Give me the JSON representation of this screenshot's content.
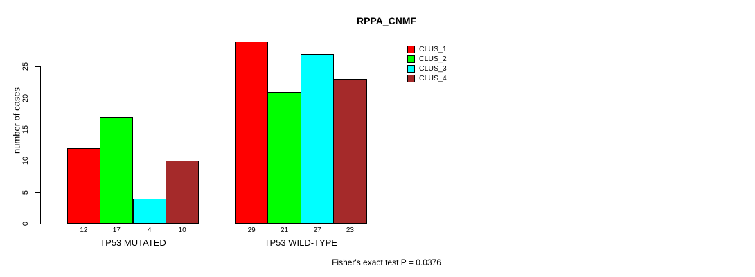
{
  "title": "RPPA_CNMF",
  "footer_note": "Fisher's exact test P = 0.0376",
  "chart_data": {
    "type": "bar",
    "title": "RPPA_CNMF",
    "xlabel": "",
    "ylabel": "number of cases",
    "categories": [
      "TP53 MUTATED",
      "TP53 WILD-TYPE"
    ],
    "series": [
      {
        "name": "CLUS_1",
        "color": "#ff0000",
        "values": [
          12,
          29
        ]
      },
      {
        "name": "CLUS_2",
        "color": "#00ff00",
        "values": [
          17,
          21
        ]
      },
      {
        "name": "CLUS_3",
        "color": "#00ffff",
        "values": [
          4,
          27
        ]
      },
      {
        "name": "CLUS_4",
        "color": "#a52a2a",
        "values": [
          10,
          23
        ]
      }
    ],
    "bar_value_labels": [
      [
        12,
        17,
        4,
        10
      ],
      [
        29,
        21,
        27,
        23
      ]
    ],
    "yticks": [
      0,
      5,
      10,
      15,
      20,
      25
    ],
    "ylim": [
      0,
      29.5
    ],
    "grid": false,
    "legend_position": "top-right",
    "legend_entries": [
      "CLUS_1",
      "CLUS_2",
      "CLUS_3",
      "CLUS_4"
    ],
    "annotation": "Fisher's exact test P = 0.0376",
    "bar_outline_color": "#000000"
  }
}
